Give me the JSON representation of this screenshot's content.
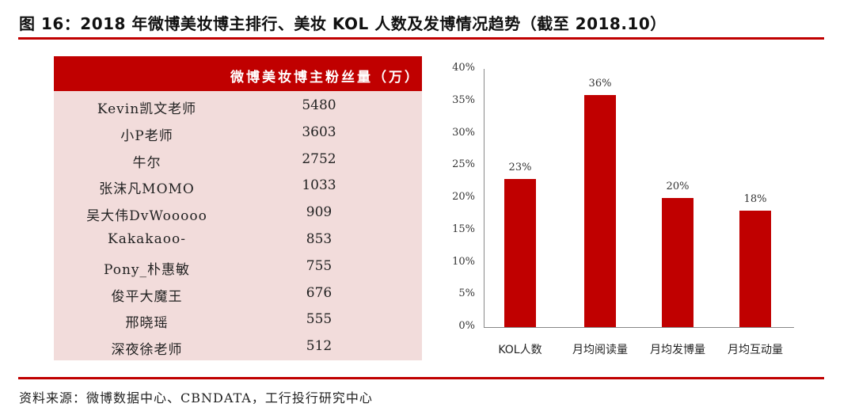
{
  "title": "图 16：2018 年微博美妆博主排行、美妆 KOL 人数及发博情况趋势（截至 2018.10）",
  "table": {
    "header": "微博美妆博主粉丝量（万）",
    "rows": [
      {
        "name": "Kevin凯文老师",
        "value": "5480"
      },
      {
        "name": "小P老师",
        "value": "3603"
      },
      {
        "name": "牛尔",
        "value": "2752"
      },
      {
        "name": "张沫凡MOMO",
        "value": "1033"
      },
      {
        "name": "吴大伟DvWooooo",
        "value": "909"
      },
      {
        "name": "Kakakaoo-",
        "value": "853"
      },
      {
        "name": "Pony_朴惠敏",
        "value": "755"
      },
      {
        "name": "俊平大魔王",
        "value": "676"
      },
      {
        "name": "邢晓瑶",
        "value": "555"
      },
      {
        "name": "深夜徐老师",
        "value": "512"
      }
    ]
  },
  "chart_data": {
    "type": "bar",
    "title": "",
    "xlabel": "",
    "ylabel": "",
    "categories": [
      "KOL人数",
      "月均阅读量",
      "月均发博量",
      "月均互动量"
    ],
    "values": [
      23,
      36,
      20,
      18
    ],
    "value_labels": [
      "23%",
      "36%",
      "20%",
      "18%"
    ],
    "ylim": [
      0,
      40
    ],
    "yticks": [
      "0%",
      "5%",
      "10%",
      "15%",
      "20%",
      "25%",
      "30%",
      "35%",
      "40%"
    ],
    "grid": false,
    "legend": "none",
    "bar_color": "#C00000"
  },
  "colors": {
    "accent": "#C00000",
    "table_body": "#F2DCDB"
  },
  "source": "资料来源：微博数据中心、CBNDATA，工行投行研究中心"
}
